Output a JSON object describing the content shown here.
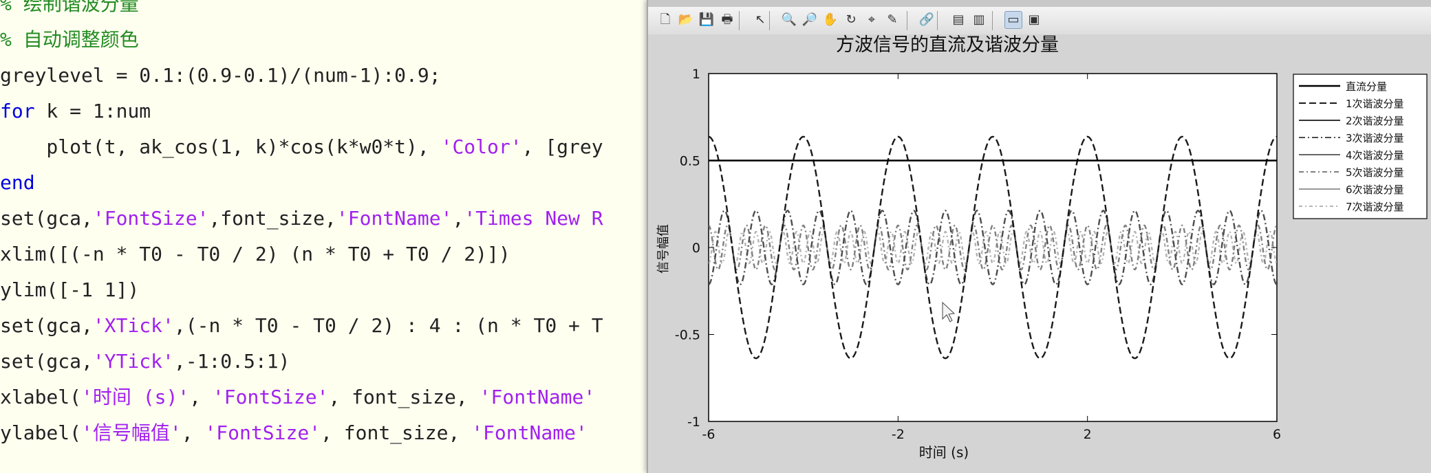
{
  "editor": {
    "lines": [
      {
        "segments": [
          {
            "t": "% 绘制谐波分量",
            "c": "comment"
          }
        ]
      },
      {
        "segments": [
          {
            "t": "% 自动调整颜色",
            "c": "comment"
          }
        ]
      },
      {
        "segments": [
          {
            "t": "greylevel = 0.1:(0.9-0.1)/(num-1):0.9;",
            "c": "plain"
          }
        ]
      },
      {
        "segments": [
          {
            "t": "for",
            "c": "keyword"
          },
          {
            "t": " k = 1:num",
            "c": "plain"
          }
        ]
      },
      {
        "segments": [
          {
            "t": "    plot(t, ak_cos(1, k)*cos(k*w0*t), ",
            "c": "plain"
          },
          {
            "t": "'Color'",
            "c": "string"
          },
          {
            "t": ", [grey",
            "c": "plain"
          }
        ]
      },
      {
        "segments": [
          {
            "t": "end",
            "c": "keyword"
          }
        ]
      },
      {
        "segments": [
          {
            "t": "set(gca,",
            "c": "plain"
          },
          {
            "t": "'FontSize'",
            "c": "string"
          },
          {
            "t": ",font_size,",
            "c": "plain"
          },
          {
            "t": "'FontName'",
            "c": "string"
          },
          {
            "t": ",",
            "c": "plain"
          },
          {
            "t": "'Times New R",
            "c": "string"
          }
        ]
      },
      {
        "segments": [
          {
            "t": "xlim([(-n * T0 - T0 / 2) (n * T0 + T0 / 2)])",
            "c": "plain"
          }
        ]
      },
      {
        "segments": [
          {
            "t": "ylim([-1 1])",
            "c": "plain"
          }
        ]
      },
      {
        "segments": [
          {
            "t": "set(gca,",
            "c": "plain"
          },
          {
            "t": "'XTick'",
            "c": "string"
          },
          {
            "t": ",(-n * T0 - T0 / 2) : 4 : (n * T0 + T",
            "c": "plain"
          }
        ]
      },
      {
        "segments": [
          {
            "t": "set(gca,",
            "c": "plain"
          },
          {
            "t": "'YTick'",
            "c": "string"
          },
          {
            "t": ",-1:0.5:1)",
            "c": "plain"
          }
        ]
      },
      {
        "segments": [
          {
            "t": "xlabel(",
            "c": "plain"
          },
          {
            "t": "'时间 (s)'",
            "c": "string"
          },
          {
            "t": ", ",
            "c": "plain"
          },
          {
            "t": "'FontSize'",
            "c": "string"
          },
          {
            "t": ", font_size, ",
            "c": "plain"
          },
          {
            "t": "'FontName'",
            "c": "string"
          }
        ]
      },
      {
        "segments": [
          {
            "t": "ylabel(",
            "c": "plain"
          },
          {
            "t": "'信号幅值'",
            "c": "string"
          },
          {
            "t": ", ",
            "c": "plain"
          },
          {
            "t": "'FontSize'",
            "c": "string"
          },
          {
            "t": ", font_size, ",
            "c": "plain"
          },
          {
            "t": "'FontName'",
            "c": "string"
          }
        ]
      }
    ]
  },
  "toolbar": {
    "icons": [
      "new-figure-icon",
      "open-file-icon",
      "save-icon",
      "print-icon",
      "pointer-icon",
      "zoom-in-icon",
      "zoom-out-icon",
      "pan-icon",
      "rotate-3d-icon",
      "data-cursor-icon",
      "brush-icon",
      "link-plot-icon",
      "colorbar-icon",
      "legend-icon",
      "hide-plot-tools-icon",
      "show-plot-tools-icon"
    ]
  },
  "chart_data": {
    "type": "line",
    "title": "方波信号的直流及谐波分量",
    "xlabel": "时间 (s)",
    "ylabel": "信号幅值",
    "xlim": [
      -6,
      6
    ],
    "ylim": [
      -1,
      1
    ],
    "xticks": [
      -6,
      -2,
      2,
      6
    ],
    "yticks": [
      -1,
      -0.5,
      0,
      0.5,
      1
    ],
    "grid": false,
    "legend_position": "outside-right-top",
    "series": [
      {
        "name": "直流分量",
        "kind": "dc",
        "value": 0.5,
        "color": "#000000"
      },
      {
        "name": "1次谐波分量",
        "k": 1,
        "amplitude": 0.637,
        "color": "#1a1a1a"
      },
      {
        "name": "2次谐波分量",
        "k": 2,
        "amplitude": 0,
        "color": "#333333"
      },
      {
        "name": "3次谐波分量",
        "k": 3,
        "amplitude": -0.212,
        "color": "#4d4d4d"
      },
      {
        "name": "4次谐波分量",
        "k": 4,
        "amplitude": 0,
        "color": "#666666"
      },
      {
        "name": "5次谐波分量",
        "k": 5,
        "amplitude": 0.127,
        "color": "#808080"
      },
      {
        "name": "6次谐波分量",
        "k": 6,
        "amplitude": 0,
        "color": "#999999"
      },
      {
        "name": "7次谐波分量",
        "k": 7,
        "amplitude": -0.091,
        "color": "#b3b3b3"
      }
    ],
    "period": 2
  }
}
